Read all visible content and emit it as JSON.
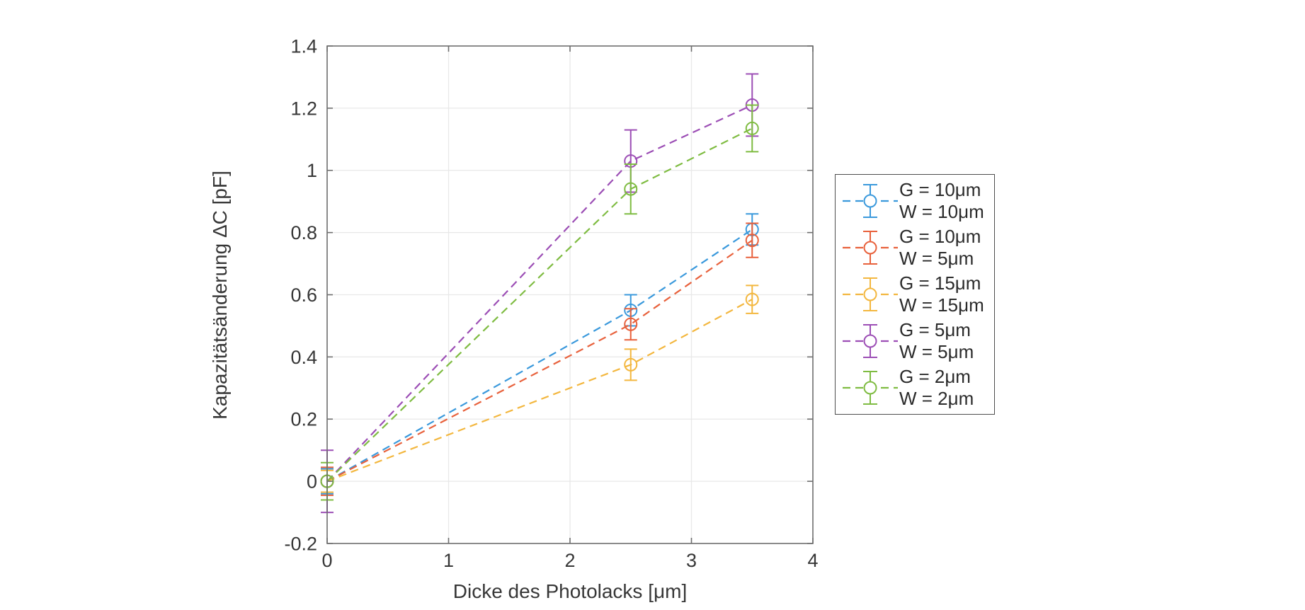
{
  "chart_data": {
    "type": "line",
    "title": "",
    "xlabel": "Dicke des Photolacks [μm]",
    "ylabel": "Kapazitätsänderung ΔC [pF]",
    "xlim": [
      0,
      4
    ],
    "ylim": [
      -0.2,
      1.4
    ],
    "xticks": [
      0,
      1,
      2,
      3,
      4
    ],
    "xtick_labels": [
      "0",
      "1",
      "2",
      "3",
      "4"
    ],
    "yticks": [
      -0.2,
      0,
      0.2,
      0.4,
      0.6,
      0.8,
      1.0,
      1.2,
      1.4
    ],
    "ytick_labels": [
      "-0.2",
      "0",
      "0.2",
      "0.4",
      "0.6",
      "0.8",
      "1",
      "1.2",
      "1.4"
    ],
    "grid": true,
    "legend_position": "outside-right",
    "line_style": "dashed",
    "marker": "open-circle",
    "x": [
      0,
      2.5,
      3.5
    ],
    "series": [
      {
        "name": "G = 10μm W = 10μm",
        "label_line1": "G = 10μm",
        "label_line2": "W = 10μm",
        "color": "#3A99DC",
        "values": [
          0,
          0.55,
          0.81
        ],
        "errors": [
          0.04,
          0.05,
          0.05
        ]
      },
      {
        "name": "G = 10μm W = 5μm",
        "label_line1": "G = 10μm",
        "label_line2": "W = 5μm",
        "color": "#E8613C",
        "values": [
          0,
          0.505,
          0.775
        ],
        "errors": [
          0.045,
          0.05,
          0.055
        ]
      },
      {
        "name": "G = 15μm W = 15μm",
        "label_line1": "G = 15μm",
        "label_line2": "W = 15μm",
        "color": "#F3B73F",
        "values": [
          0,
          0.375,
          0.585
        ],
        "errors": [
          0.035,
          0.05,
          0.045
        ]
      },
      {
        "name": "G = 5μm W = 5μm",
        "label_line1": "G = 5μm",
        "label_line2": "W = 5μm",
        "color": "#9C4EB5",
        "values": [
          0,
          1.03,
          1.21
        ],
        "errors": [
          0.1,
          0.1,
          0.1
        ]
      },
      {
        "name": "G = 2μm W = 2μm",
        "label_line1": "G = 2μm",
        "label_line2": "W = 2μm",
        "color": "#7FBC42",
        "values": [
          0,
          0.94,
          1.135
        ],
        "errors": [
          0.06,
          0.08,
          0.075
        ]
      }
    ]
  },
  "style": {
    "grid_color": "#e8e8e8",
    "axis_color": "#6e6e6e",
    "text_color": "#373737"
  }
}
